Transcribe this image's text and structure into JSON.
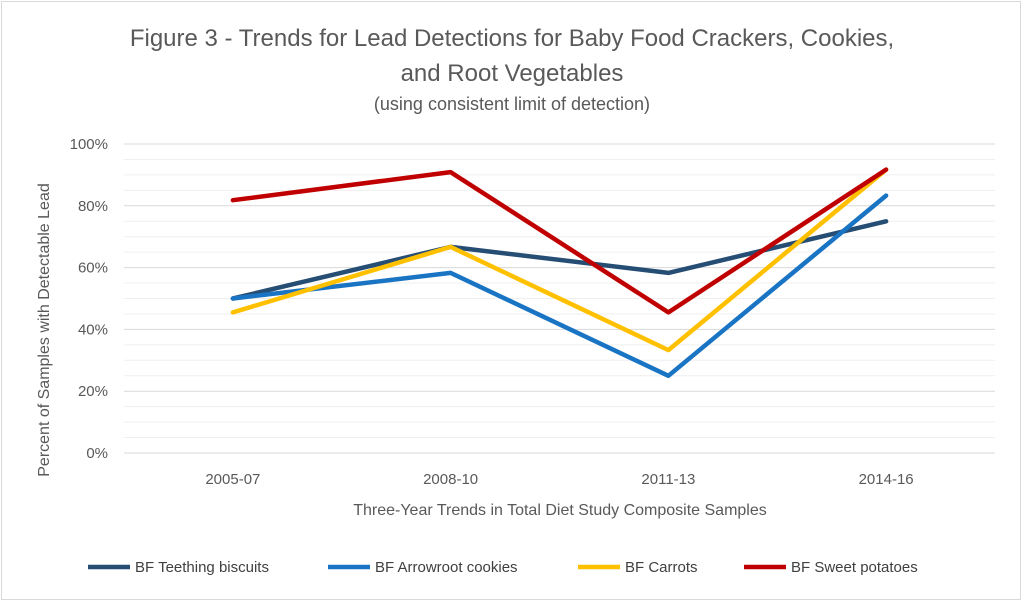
{
  "chart_data": {
    "type": "line",
    "title_line1": "Figure 3 - Trends for Lead Detections for Baby Food Crackers, Cookies,",
    "title_line2": "and Root Vegetables",
    "subtitle": "(using consistent limit of detection)",
    "xlabel": "Three-Year Trends in Total Diet Study Composite Samples",
    "ylabel": "Percent of Samples with Detectable Lead",
    "categories": [
      "2005-07",
      "2008-10",
      "2011-13",
      "2014-16"
    ],
    "ylim": [
      0,
      100
    ],
    "y_ticks": [
      "0%",
      "20%",
      "40%",
      "60%",
      "80%",
      "100%"
    ],
    "grid": true,
    "legend_position": "bottom",
    "series": [
      {
        "name": "BF Teething biscuits",
        "color": "#264d73",
        "values": [
          50,
          66.7,
          58.3,
          75
        ]
      },
      {
        "name": "BF Arrowroot cookies",
        "color": "#1a74c4",
        "values": [
          50,
          58.3,
          25,
          83.3
        ]
      },
      {
        "name": "BF Carrots",
        "color": "#ffc000",
        "values": [
          45.5,
          66.7,
          33.3,
          91.7
        ]
      },
      {
        "name": "BF Sweet potatoes",
        "color": "#c00000",
        "values": [
          81.8,
          90.9,
          45.5,
          91.7
        ]
      }
    ]
  }
}
